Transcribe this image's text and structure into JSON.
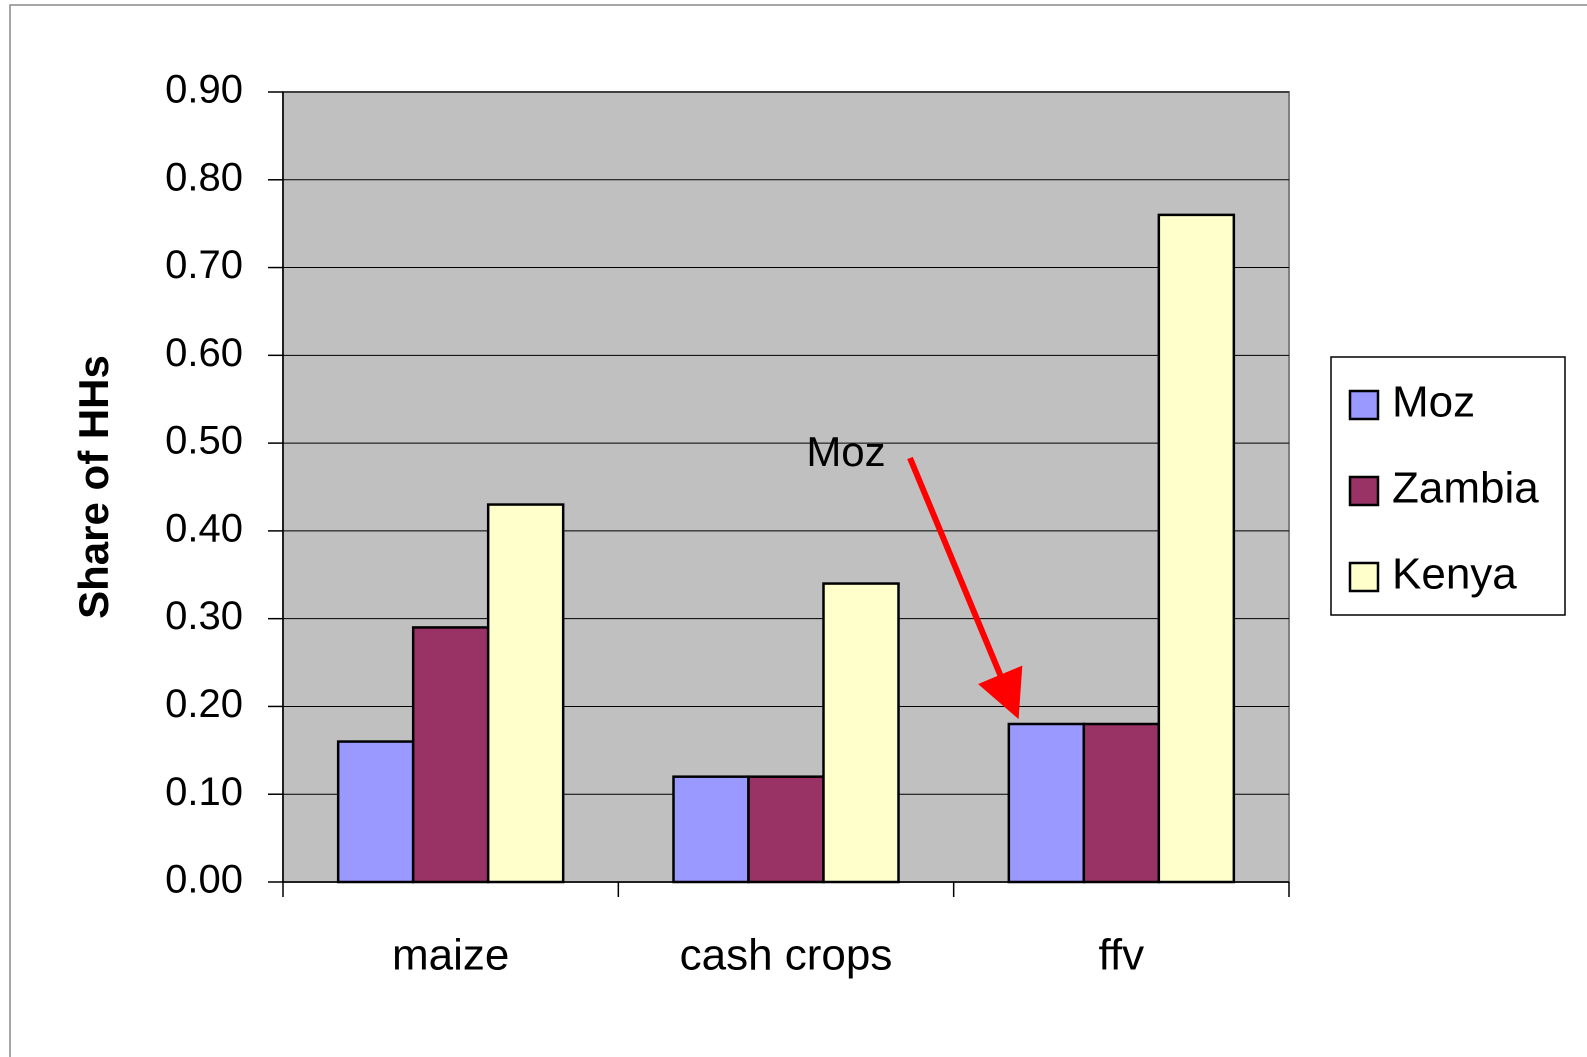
{
  "chart_data": {
    "type": "bar",
    "y_label": "Share of HHs",
    "categories": [
      "maize",
      "cash crops",
      "ffv"
    ],
    "series": [
      {
        "name": "Moz",
        "color": "#9999ff",
        "values": [
          0.16,
          0.12,
          0.18
        ]
      },
      {
        "name": "Zambia",
        "color": "#993366",
        "values": [
          0.29,
          0.12,
          0.18
        ]
      },
      {
        "name": "Kenya",
        "color": "#ffffcc",
        "values": [
          0.43,
          0.34,
          0.76
        ]
      }
    ],
    "ylim": [
      0,
      0.9
    ],
    "yticks": [
      {
        "value": 0,
        "label": "0.00"
      },
      {
        "value": 0.1,
        "label": "0.10"
      },
      {
        "value": 0.2,
        "label": "0.20"
      },
      {
        "value": 0.3,
        "label": "0.30"
      },
      {
        "value": 0.4,
        "label": "0.40"
      },
      {
        "value": 0.5,
        "label": "0.50"
      },
      {
        "value": 0.6,
        "label": "0.60"
      },
      {
        "value": 0.7,
        "label": "0.70"
      },
      {
        "value": 0.8,
        "label": "0.80"
      },
      {
        "value": 0.9,
        "label": "0.90"
      }
    ],
    "grid": true,
    "legend": "right",
    "plot_background": "#c0c0c0",
    "annotations": [
      {
        "text": "Moz"
      }
    ]
  }
}
